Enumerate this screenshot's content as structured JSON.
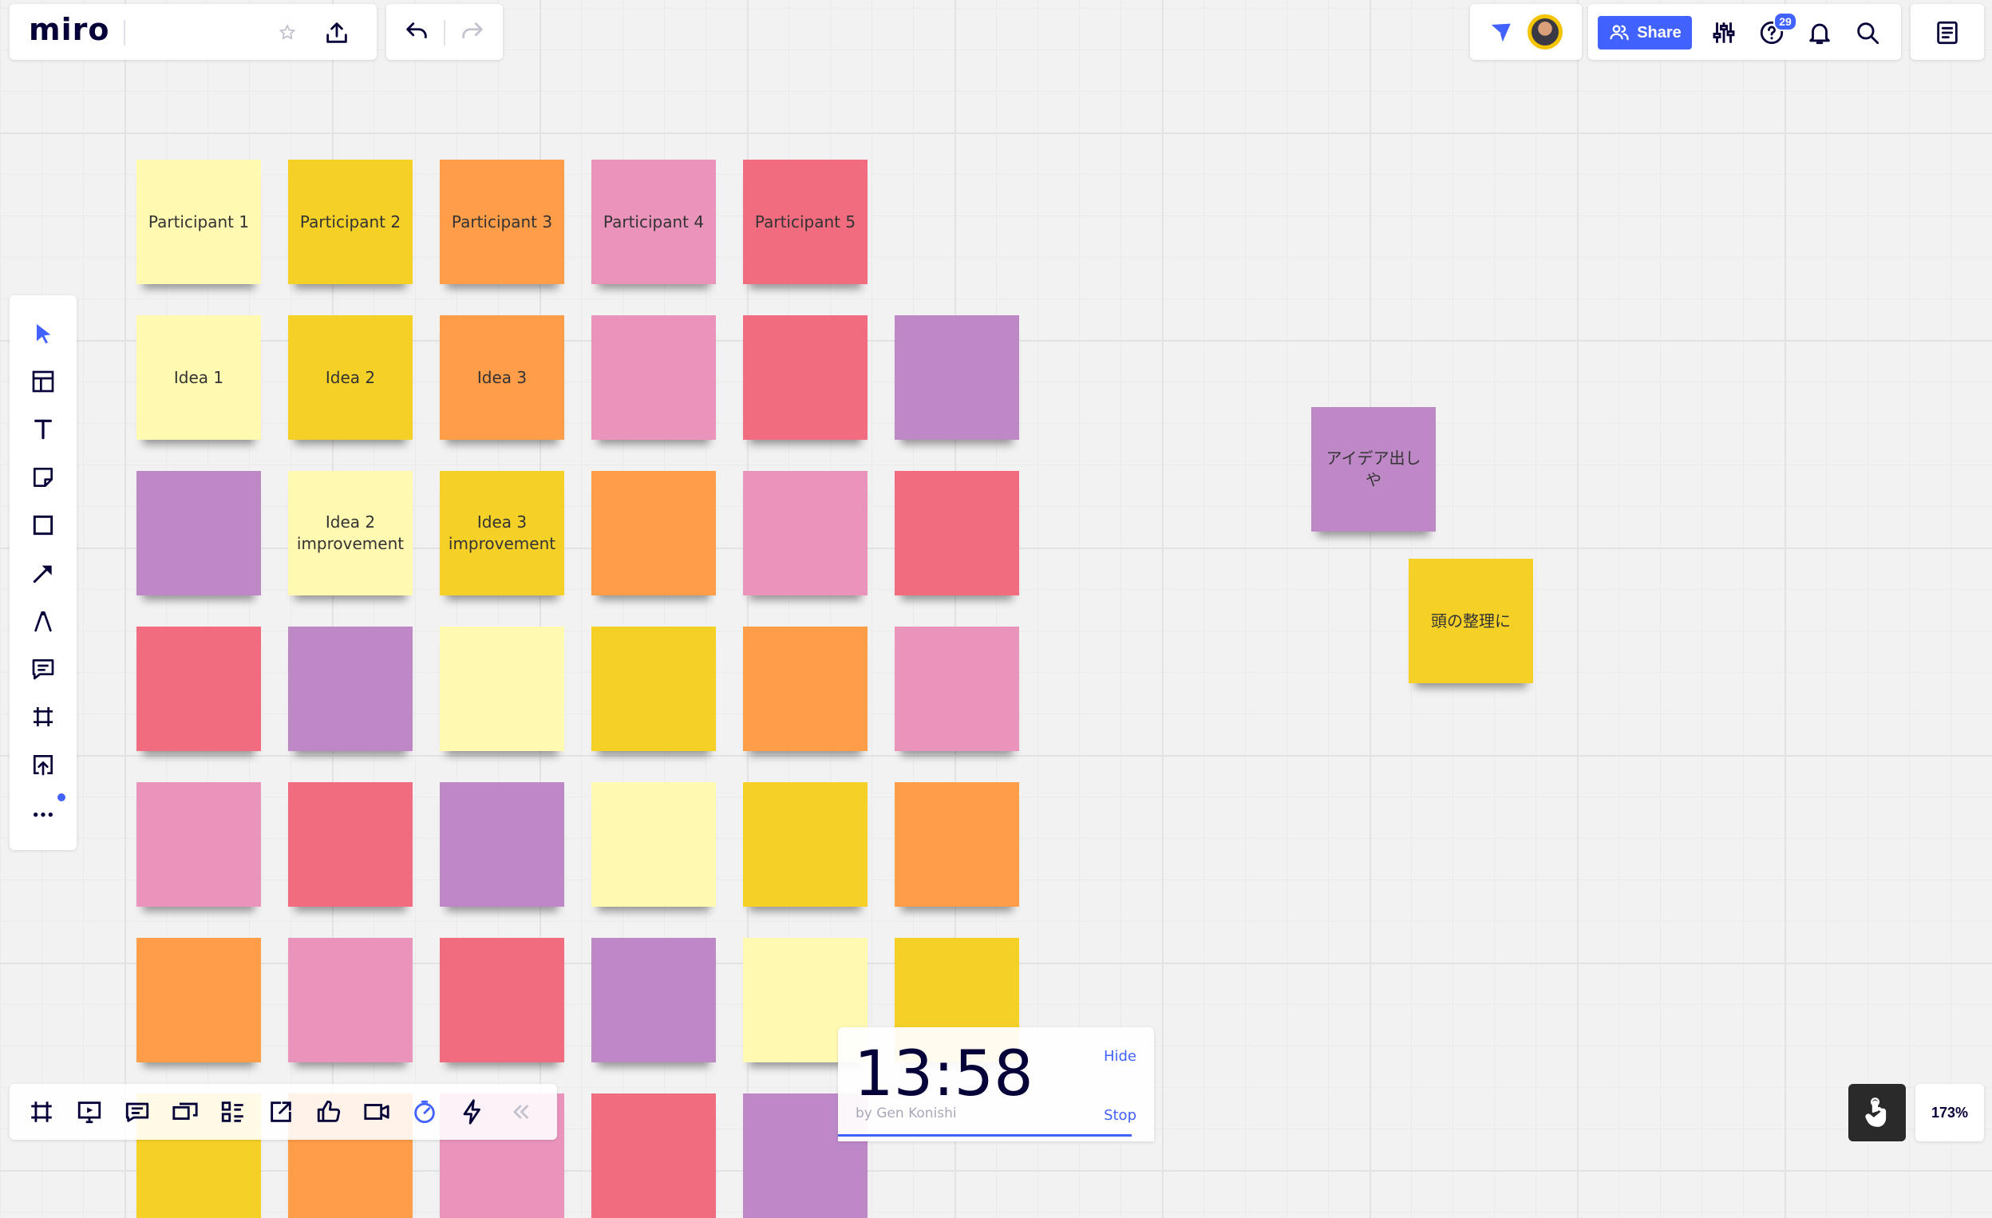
{
  "app": {
    "logo": "miro",
    "board_name": ""
  },
  "topbar": {
    "share_label": "Share",
    "help_badge": "29"
  },
  "zoom": "173%",
  "timer": {
    "time": "13:58",
    "by": "by Gen Konishi",
    "hide_label": "Hide",
    "stop_label": "Stop",
    "progress_fraction": 0.93
  },
  "sticky_labels": {
    "r0c0": "Participant 1",
    "r0c1": "Participant 2",
    "r0c2": "Participant 3",
    "r0c3": "Participant 4",
    "r0c4": "Participant 5",
    "r1c0": "Idea 1",
    "r1c1": "Idea 2",
    "r1c2": "Idea 3",
    "r2c1": "Idea 2 improvement",
    "r2c2": "Idea 3 improvement",
    "float_purple": "アイデア出しや",
    "float_yellow": "頭の整理に"
  },
  "colors": {
    "accent": "#4262ff",
    "light_yellow": "#fff9b1",
    "yellow": "#f5d128",
    "orange": "#ff9d48",
    "pink": "#ea94bb",
    "red": "#f16c7f",
    "violet": "#be88c7"
  },
  "left_toolbar_icons": [
    "select-icon",
    "templates-icon",
    "text-icon",
    "sticky-note-icon",
    "shape-icon",
    "connection-line-icon",
    "pen-icon",
    "comment-icon",
    "frame-icon",
    "upload-icon",
    "more-icon"
  ],
  "bottom_toolbar_icons": [
    "frames-icon",
    "presentation-icon",
    "cards-icon",
    "screen-share-icon",
    "kanban-icon",
    "export-icon",
    "voting-icon",
    "video-chat-icon",
    "timer-icon",
    "lightning-icon",
    "collapse-icon"
  ]
}
